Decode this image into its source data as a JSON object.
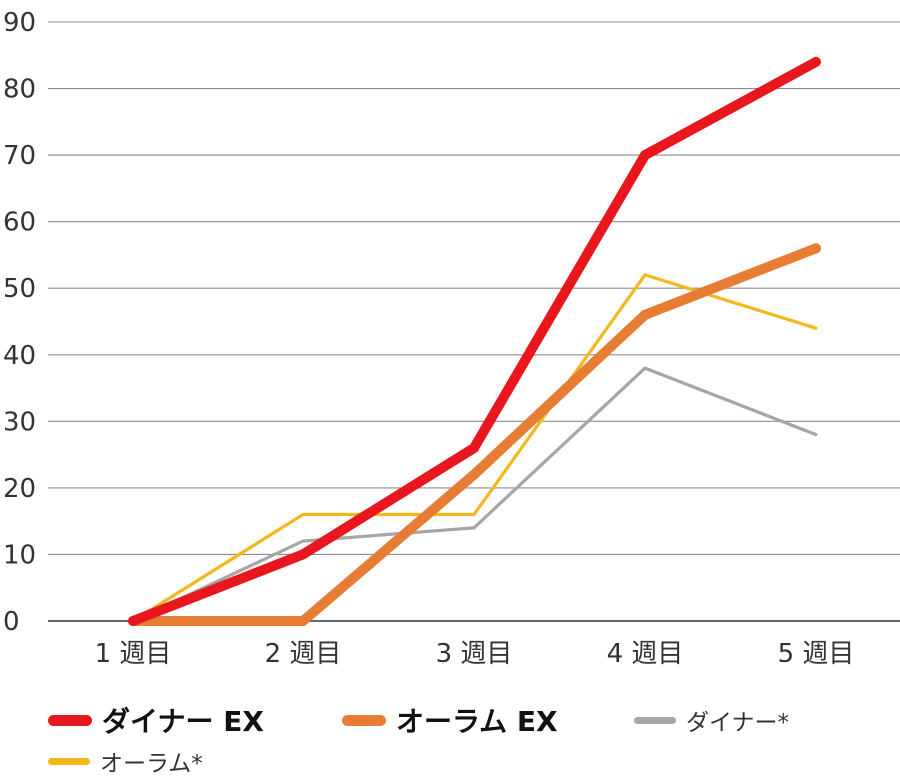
{
  "chart_data": {
    "type": "line",
    "categories": [
      "1 週目",
      "2 週目",
      "3 週目",
      "4 週目",
      "5 週目"
    ],
    "ylim": [
      0,
      90
    ],
    "yticks": [
      0,
      10,
      20,
      30,
      40,
      50,
      60,
      70,
      80,
      90
    ],
    "grid": true,
    "legend_position": "bottom",
    "series": [
      {
        "name": "ダイナー EX",
        "color": "#e8161d",
        "style": "thick",
        "values": [
          0,
          10,
          26,
          70,
          84
        ]
      },
      {
        "name": "オーラム EX",
        "color": "#e77c35",
        "style": "thick",
        "values": [
          0,
          0,
          22,
          46,
          56
        ]
      },
      {
        "name": "ダイナー*",
        "color": "#a6a6a6",
        "style": "thin",
        "values": [
          0,
          12,
          14,
          38,
          28
        ]
      },
      {
        "name": "オーラム*",
        "color": "#f2b81c",
        "style": "thin",
        "values": [
          0,
          16,
          16,
          52,
          44
        ]
      }
    ]
  }
}
